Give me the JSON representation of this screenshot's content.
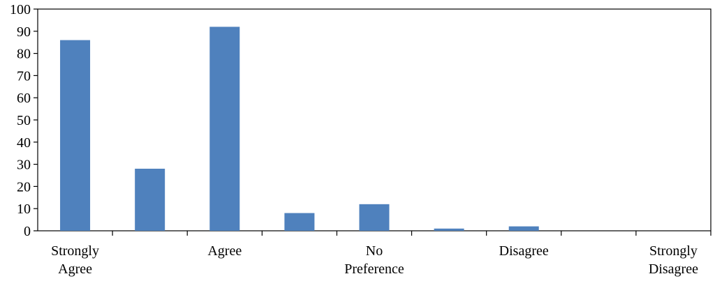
{
  "chart_data": {
    "type": "bar",
    "categories": [
      "Strongly Agree",
      "",
      "Agree",
      "",
      "No Preference",
      "",
      "Disagree",
      "",
      "Strongly Disagree"
    ],
    "category_labels": [
      [
        "Strongly",
        "Agree"
      ],
      [],
      [
        "Agree"
      ],
      [],
      [
        "No",
        "Preference"
      ],
      [],
      [
        "Disagree"
      ],
      [],
      [
        "Strongly",
        "Disagree"
      ]
    ],
    "values": [
      86,
      28,
      92,
      8,
      12,
      1,
      2,
      0,
      0
    ],
    "title": "",
    "xlabel": "",
    "ylabel": "",
    "ylim": [
      0,
      100
    ],
    "y_ticks": [
      0,
      10,
      20,
      30,
      40,
      50,
      60,
      70,
      80,
      90,
      100
    ],
    "grid": false,
    "legend": "none",
    "bar_color": "#4f81bd"
  }
}
